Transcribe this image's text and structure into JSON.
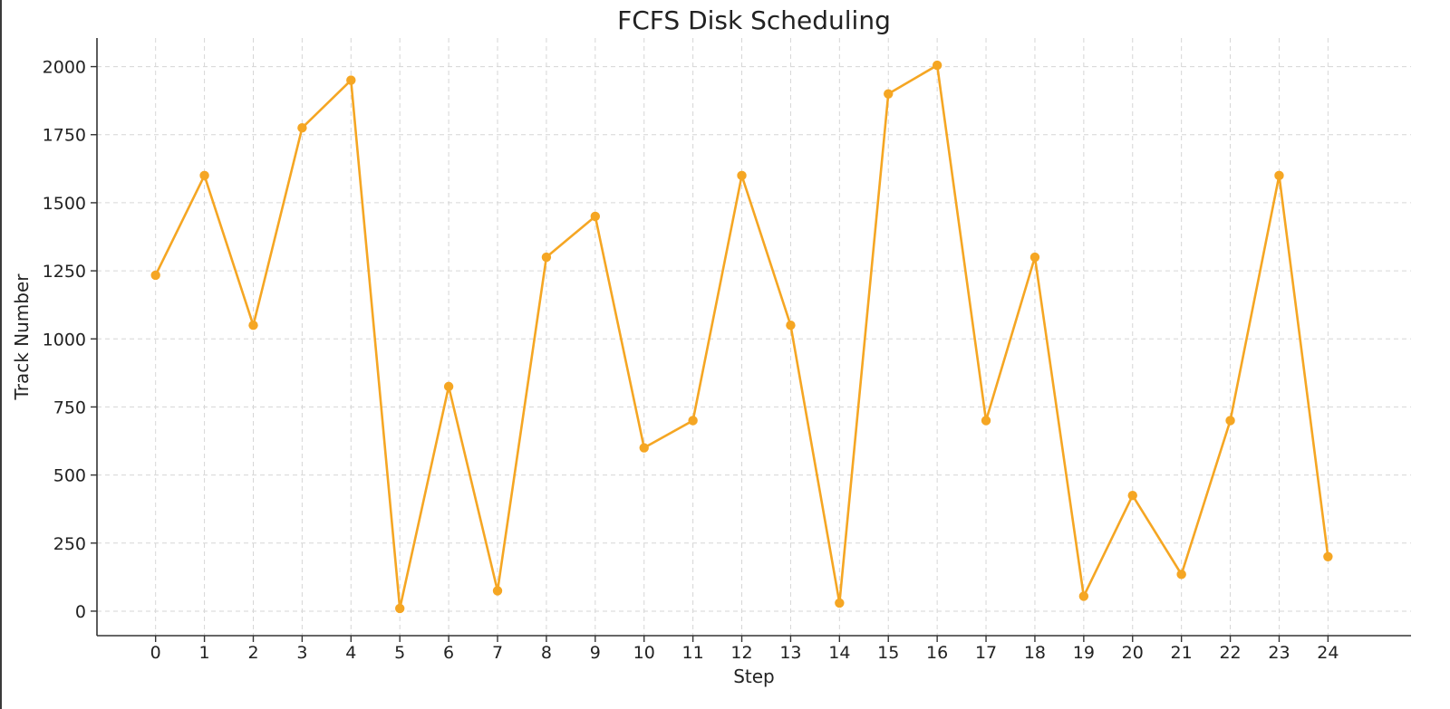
{
  "chart_data": {
    "type": "line",
    "title": "FCFS Disk Scheduling",
    "xlabel": "Step",
    "ylabel": "Track Number",
    "x": [
      0,
      1,
      2,
      3,
      4,
      5,
      6,
      7,
      8,
      9,
      10,
      11,
      12,
      13,
      14,
      15,
      16,
      17,
      18,
      19,
      20,
      21,
      22,
      23,
      24
    ],
    "x_ticks": [
      "0",
      "1",
      "2",
      "3",
      "4",
      "5",
      "6",
      "7",
      "8",
      "9",
      "10",
      "11",
      "12",
      "13",
      "14",
      "15",
      "16",
      "17",
      "18",
      "19",
      "20",
      "21",
      "22",
      "23",
      "24"
    ],
    "y_ticks": [
      "0",
      "250",
      "500",
      "750",
      "1000",
      "1250",
      "1500",
      "1750",
      "2000"
    ],
    "series": [
      {
        "values": [
          1234,
          1600,
          1050,
          1775,
          1950,
          10,
          825,
          75,
          1300,
          1450,
          600,
          700,
          1600,
          1050,
          30,
          1900,
          2005,
          700,
          1300,
          55,
          425,
          135,
          700,
          1600,
          200
        ]
      }
    ],
    "xlim": [
      -1.2,
      25.7
    ],
    "ylim": [
      -90,
      2105
    ],
    "grid": true,
    "line_color": "#f5a623",
    "marker": "circle"
  }
}
